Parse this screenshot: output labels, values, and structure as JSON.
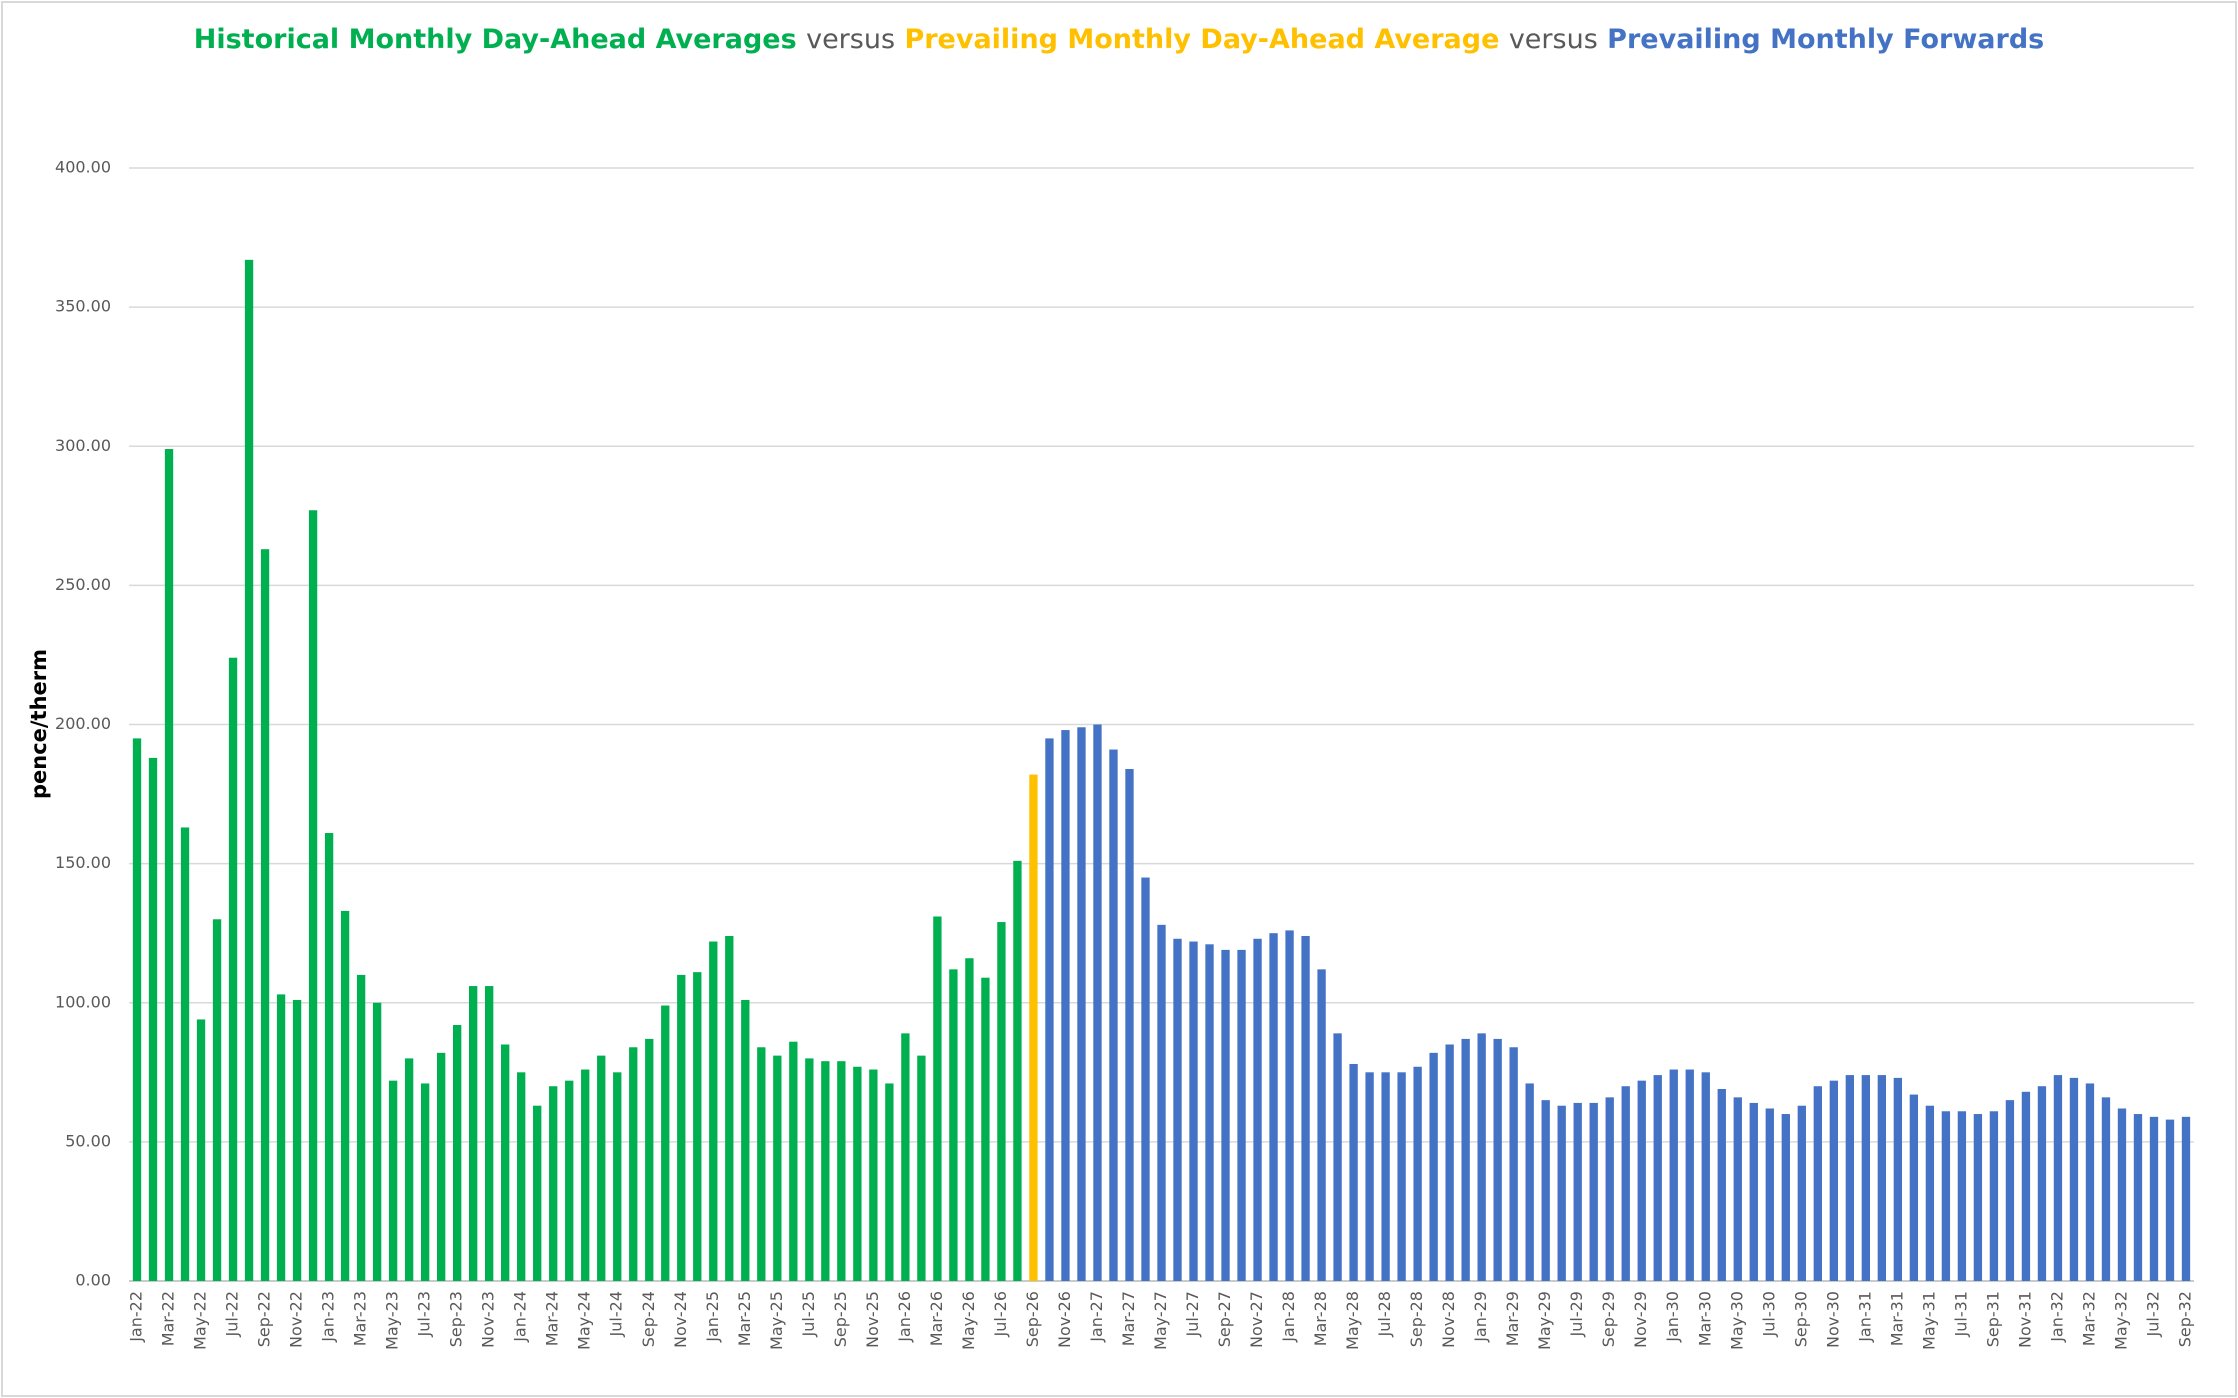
{
  "chart_data": {
    "type": "bar",
    "title_joiners": [
      "versus",
      "versus"
    ],
    "y_label": "pence/therm",
    "categories": [
      "Jan-22",
      null,
      "Mar-22",
      null,
      "May-22",
      null,
      "Jul-22",
      null,
      "Sep-22",
      null,
      "Nov-22",
      null,
      "Jan-23",
      null,
      "Mar-23",
      null,
      "May-23",
      null,
      "Jul-23",
      null,
      "Sep-23",
      null,
      "Nov-23",
      null,
      "Jan-24",
      null,
      "Mar-24",
      null,
      "May-24",
      null,
      "Jul-24",
      null,
      "Sep-24",
      null,
      "Nov-24",
      null,
      "Jan-25",
      null,
      "Mar-25",
      null,
      "May-25",
      null,
      "Jul-25",
      null,
      "Sep-25",
      null,
      "Nov-25",
      null,
      "Jan-26",
      null,
      "Mar-26",
      null,
      "May-26",
      null,
      "Jul-26",
      null,
      "Sep-26",
      null,
      "Nov-26",
      null,
      "Jan-27",
      null,
      "Mar-27",
      null,
      "May-27",
      null,
      "Jul-27",
      null,
      "Sep-27",
      null,
      "Nov-27",
      null,
      "Jan-28",
      null,
      "Mar-28",
      null,
      "May-28",
      null,
      "Jul-28",
      null,
      "Sep-28",
      null,
      "Nov-28",
      null,
      "Jan-29",
      null,
      "Mar-29",
      null,
      "May-29",
      null,
      "Jul-29",
      null,
      "Sep-29",
      null,
      "Nov-29",
      null,
      "Jan-30",
      null,
      "Mar-30",
      null,
      "May-30",
      null,
      "Jul-30",
      null,
      "Sep-30",
      null,
      "Nov-30",
      null,
      "Jan-31",
      null,
      "Mar-31",
      null,
      "May-31",
      null,
      "Jul-31",
      null,
      "Sep-31",
      null,
      "Nov-31",
      null,
      "Jan-32",
      null,
      "Mar-32",
      null,
      "May-32",
      null,
      "Jul-32",
      null,
      "Sep-32"
    ],
    "series": [
      {
        "name": "Historical Monthly Day-Ahead Averages",
        "color": "#00b050",
        "values": [
          195,
          188,
          299,
          163,
          94,
          130,
          224,
          367,
          263,
          103,
          101,
          277,
          161,
          133,
          110,
          100,
          72,
          80,
          71,
          82,
          92,
          106,
          106,
          85,
          75,
          63,
          70,
          72,
          76,
          81,
          75,
          84,
          87,
          99,
          110,
          111,
          122,
          124,
          101,
          84,
          81,
          86,
          80,
          79,
          79,
          77,
          76,
          71,
          89,
          81,
          131,
          112,
          116,
          109,
          129,
          151,
          null,
          null,
          null,
          null,
          null,
          null,
          null,
          null,
          null,
          null,
          null,
          null,
          null,
          null,
          null,
          null,
          null,
          null,
          null,
          null,
          null,
          null,
          null,
          null,
          null,
          null,
          null,
          null,
          null,
          null,
          null,
          null,
          null,
          null,
          null,
          null,
          null,
          null,
          null,
          null,
          null,
          null,
          null,
          null,
          null,
          null,
          null,
          null,
          null,
          null,
          null,
          null,
          null,
          null,
          null,
          null,
          null,
          null,
          null,
          null,
          null,
          null,
          null,
          null,
          null,
          null,
          null,
          null,
          null,
          null,
          null,
          null,
          null
        ]
      },
      {
        "name": "Prevailing Monthly Day-Ahead Average",
        "color": "#ffc000",
        "values": [
          null,
          null,
          null,
          null,
          null,
          null,
          null,
          null,
          null,
          null,
          null,
          null,
          null,
          null,
          null,
          null,
          null,
          null,
          null,
          null,
          null,
          null,
          null,
          null,
          null,
          null,
          null,
          null,
          null,
          null,
          null,
          null,
          null,
          null,
          null,
          null,
          null,
          null,
          null,
          null,
          null,
          null,
          null,
          null,
          null,
          null,
          null,
          null,
          null,
          null,
          null,
          null,
          null,
          null,
          null,
          null,
          182,
          null,
          null,
          null,
          null,
          null,
          null,
          null,
          null,
          null,
          null,
          null,
          null,
          null,
          null,
          null,
          null,
          null,
          null,
          null,
          null,
          null,
          null,
          null,
          null,
          null,
          null,
          null,
          null,
          null,
          null,
          null,
          null,
          null,
          null,
          null,
          null,
          null,
          null,
          null,
          null,
          null,
          null,
          null,
          null,
          null,
          null,
          null,
          null,
          null,
          null,
          null,
          null,
          null,
          null,
          null,
          null,
          null,
          null,
          null,
          null,
          null,
          null,
          null,
          null,
          null,
          null,
          null,
          null,
          null,
          null,
          null,
          null
        ]
      },
      {
        "name": "Prevailing Monthly Forwards",
        "color": "#4472c4",
        "values": [
          null,
          null,
          null,
          null,
          null,
          null,
          null,
          null,
          null,
          null,
          null,
          null,
          null,
          null,
          null,
          null,
          null,
          null,
          null,
          null,
          null,
          null,
          null,
          null,
          null,
          null,
          null,
          null,
          null,
          null,
          null,
          null,
          null,
          null,
          null,
          null,
          null,
          null,
          null,
          null,
          null,
          null,
          null,
          null,
          null,
          null,
          null,
          null,
          null,
          null,
          null,
          null,
          null,
          null,
          null,
          null,
          null,
          195,
          198,
          199,
          200,
          191,
          184,
          145,
          128,
          123,
          122,
          121,
          119,
          119,
          123,
          125,
          126,
          124,
          112,
          89,
          78,
          75,
          75,
          75,
          77,
          82,
          85,
          87,
          89,
          87,
          84,
          71,
          65,
          63,
          64,
          64,
          66,
          70,
          72,
          74,
          76,
          76,
          75,
          69,
          66,
          64,
          62,
          60,
          63,
          70,
          72,
          74,
          74,
          74,
          73,
          67,
          63,
          61,
          61,
          60,
          61,
          65,
          68,
          70,
          74,
          73,
          71,
          66,
          62,
          60,
          59,
          58,
          59
        ]
      }
    ],
    "ylim": [
      0,
      400
    ],
    "yticks": [
      {
        "value": 0,
        "label": "0.00"
      },
      {
        "value": 50,
        "label": "50.00"
      },
      {
        "value": 100,
        "label": "100.00"
      },
      {
        "value": 150,
        "label": "150.00"
      },
      {
        "value": 200,
        "label": "200.00"
      },
      {
        "value": 250,
        "label": "250.00"
      },
      {
        "value": 300,
        "label": "300.00"
      },
      {
        "value": 350,
        "label": "350.00"
      },
      {
        "value": 400,
        "label": "400.00"
      }
    ],
    "grid": true
  }
}
